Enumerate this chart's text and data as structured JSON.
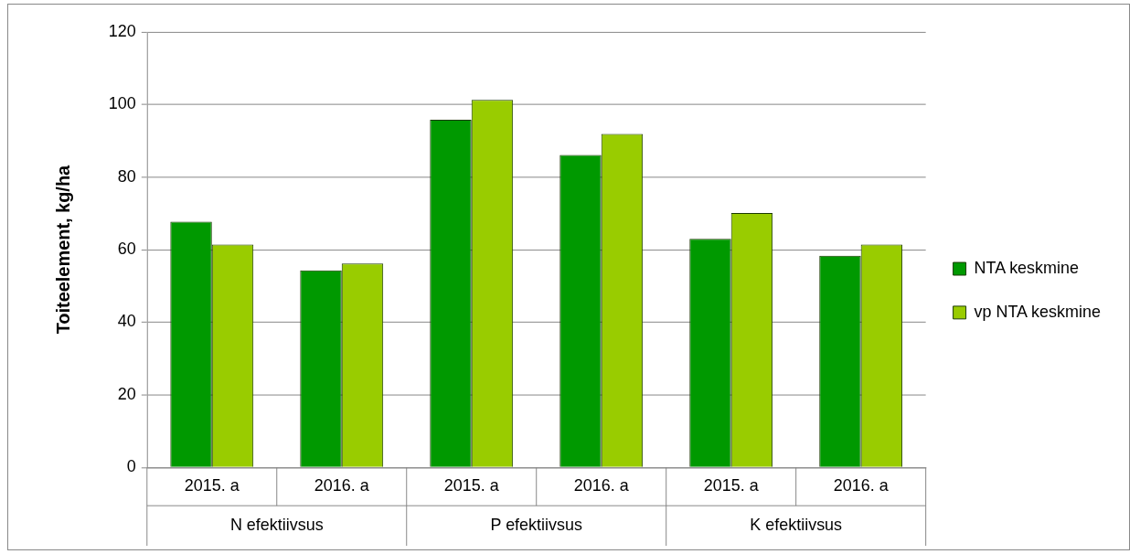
{
  "chart_data": {
    "type": "bar",
    "ylabel": "Toiteelement, kg/ha",
    "categories": [
      "2015. a",
      "2016. a",
      "2015. a",
      "2016. a",
      "2015. a",
      "2016. a"
    ],
    "annotations": [
      "N efektiivsus",
      "P efektiivsus",
      "K efektiivsus"
    ],
    "series": [
      {
        "name": "NTA keskmine",
        "color": "#009900",
        "values": [
          67.7,
          54.3,
          95.8,
          86.1,
          63,
          58.3
        ]
      },
      {
        "name": "vp NTA keskmine",
        "color": "#99cc00",
        "values": [
          61.4,
          56.2,
          101.3,
          91.9,
          70.1,
          61.4
        ]
      }
    ],
    "ylim": [
      0,
      120
    ],
    "yticks": [
      0,
      20,
      40,
      60,
      80,
      100,
      120
    ],
    "grid": "y",
    "legend": "right"
  }
}
